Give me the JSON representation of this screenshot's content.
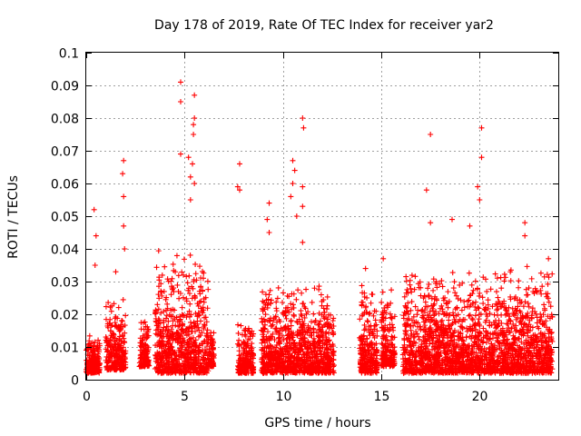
{
  "chart_data": {
    "type": "scatter",
    "title": "Day 178 of 2019, Rate Of TEC Index for receiver yar2",
    "xlabel": "GPS time / hours",
    "ylabel": "ROTI / TECUs",
    "xlim": [
      0,
      24
    ],
    "ylim": [
      0,
      0.1
    ],
    "xticks": [
      0,
      5,
      10,
      15,
      20
    ],
    "xtick_labels": [
      "0",
      "5",
      "10",
      "15",
      "20"
    ],
    "yticks": [
      0,
      0.01,
      0.02,
      0.03,
      0.04,
      0.05,
      0.06,
      0.07,
      0.08,
      0.09,
      0.1
    ],
    "ytick_labels": [
      "0",
      "0.01",
      "0.02",
      "0.03",
      "0.04",
      "0.05",
      "0.06",
      "0.07",
      "0.08",
      "0.09",
      "0.1"
    ],
    "grid": true,
    "marker": "+",
    "color": "#ff0000",
    "series": [
      {
        "name": "ROTI",
        "notable_points": [
          {
            "x": 0.4,
            "y": 0.052
          },
          {
            "x": 0.5,
            "y": 0.044
          },
          {
            "x": 0.45,
            "y": 0.035
          },
          {
            "x": 1.9,
            "y": 0.067
          },
          {
            "x": 1.85,
            "y": 0.063
          },
          {
            "x": 1.9,
            "y": 0.056
          },
          {
            "x": 1.9,
            "y": 0.047
          },
          {
            "x": 1.95,
            "y": 0.04
          },
          {
            "x": 1.5,
            "y": 0.033
          },
          {
            "x": 4.8,
            "y": 0.091
          },
          {
            "x": 4.8,
            "y": 0.085
          },
          {
            "x": 5.5,
            "y": 0.087
          },
          {
            "x": 5.5,
            "y": 0.08
          },
          {
            "x": 5.45,
            "y": 0.078
          },
          {
            "x": 5.45,
            "y": 0.075
          },
          {
            "x": 4.8,
            "y": 0.069
          },
          {
            "x": 5.2,
            "y": 0.068
          },
          {
            "x": 5.4,
            "y": 0.066
          },
          {
            "x": 5.3,
            "y": 0.062
          },
          {
            "x": 5.5,
            "y": 0.06
          },
          {
            "x": 5.3,
            "y": 0.055
          },
          {
            "x": 7.8,
            "y": 0.066
          },
          {
            "x": 7.7,
            "y": 0.059
          },
          {
            "x": 7.8,
            "y": 0.058
          },
          {
            "x": 9.3,
            "y": 0.054
          },
          {
            "x": 9.2,
            "y": 0.049
          },
          {
            "x": 9.3,
            "y": 0.045
          },
          {
            "x": 10.5,
            "y": 0.067
          },
          {
            "x": 10.6,
            "y": 0.064
          },
          {
            "x": 10.5,
            "y": 0.06
          },
          {
            "x": 10.4,
            "y": 0.056
          },
          {
            "x": 11.0,
            "y": 0.08
          },
          {
            "x": 11.05,
            "y": 0.077
          },
          {
            "x": 11.0,
            "y": 0.059
          },
          {
            "x": 11.0,
            "y": 0.053
          },
          {
            "x": 10.7,
            "y": 0.05
          },
          {
            "x": 11.0,
            "y": 0.042
          },
          {
            "x": 14.2,
            "y": 0.034
          },
          {
            "x": 15.1,
            "y": 0.037
          },
          {
            "x": 17.3,
            "y": 0.058
          },
          {
            "x": 17.5,
            "y": 0.075
          },
          {
            "x": 17.5,
            "y": 0.048
          },
          {
            "x": 18.6,
            "y": 0.049
          },
          {
            "x": 19.5,
            "y": 0.047
          },
          {
            "x": 19.9,
            "y": 0.059
          },
          {
            "x": 20.0,
            "y": 0.055
          },
          {
            "x": 20.1,
            "y": 0.068
          },
          {
            "x": 20.1,
            "y": 0.077
          },
          {
            "x": 22.3,
            "y": 0.048
          },
          {
            "x": 22.3,
            "y": 0.044
          },
          {
            "x": 23.5,
            "y": 0.037
          }
        ],
        "dense_bands": [
          {
            "x_range": [
              0.0,
              0.7
            ],
            "y_range": [
              0.002,
              0.015
            ]
          },
          {
            "x_range": [
              1.0,
              2.0
            ],
            "y_range": [
              0.003,
              0.025
            ]
          },
          {
            "x_range": [
              2.7,
              3.2
            ],
            "y_range": [
              0.004,
              0.02
            ]
          },
          {
            "x_range": [
              3.5,
              6.2
            ],
            "y_range": [
              0.002,
              0.04
            ]
          },
          {
            "x_range": [
              6.2,
              6.5
            ],
            "y_range": [
              0.004,
              0.016
            ]
          },
          {
            "x_range": [
              7.7,
              8.5
            ],
            "y_range": [
              0.002,
              0.02
            ]
          },
          {
            "x_range": [
              8.9,
              12.6
            ],
            "y_range": [
              0.002,
              0.03
            ]
          },
          {
            "x_range": [
              13.9,
              14.8
            ],
            "y_range": [
              0.002,
              0.03
            ]
          },
          {
            "x_range": [
              15.0,
              15.7
            ],
            "y_range": [
              0.004,
              0.03
            ]
          },
          {
            "x_range": [
              16.1,
              23.7
            ],
            "y_range": [
              0.002,
              0.035
            ]
          }
        ]
      }
    ]
  }
}
